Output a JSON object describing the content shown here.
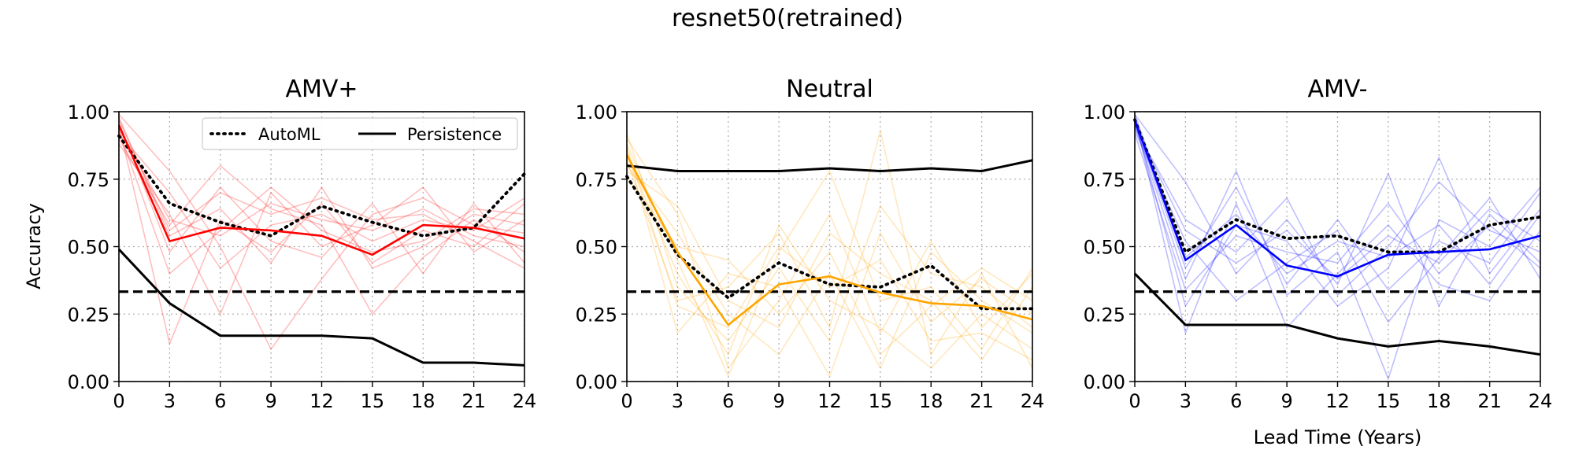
{
  "figure": {
    "title": "resnet50(retrained)"
  },
  "legend": {
    "automl_label": "AutoML",
    "persistence_label": "Persistence"
  },
  "shared_axes": {
    "ylabel": "Accuracy",
    "xlabel": "Lead Time (Years)",
    "xlim": [
      0,
      24
    ],
    "ylim": [
      0,
      1
    ],
    "xticks": [
      0,
      3,
      6,
      9,
      12,
      15,
      18,
      21,
      24
    ],
    "yticks": [
      0.0,
      0.25,
      0.5,
      0.75,
      1.0
    ],
    "ytick_labels": [
      "0.00",
      "0.25",
      "0.50",
      "0.75",
      "1.00"
    ],
    "baseline": 0.333,
    "grid": true
  },
  "chart_data": [
    {
      "type": "line",
      "title": "AMV+",
      "color": "#ff0000",
      "x": [
        0,
        3,
        6,
        9,
        12,
        15,
        18,
        21,
        24
      ],
      "series": [
        {
          "name": "AutoML",
          "style": "dotted",
          "color": "#000000",
          "values": [
            0.91,
            0.66,
            0.59,
            0.54,
            0.65,
            0.59,
            0.54,
            0.57,
            0.77
          ]
        },
        {
          "name": "Persistence",
          "style": "solid",
          "color": "#000000",
          "values": [
            0.49,
            0.29,
            0.17,
            0.17,
            0.17,
            0.16,
            0.07,
            0.07,
            0.06
          ]
        },
        {
          "style": "mean",
          "values": [
            0.95,
            0.52,
            0.57,
            0.56,
            0.54,
            0.47,
            0.58,
            0.57,
            0.53
          ]
        }
      ],
      "members": [
        [
          0.97,
          0.56,
          0.7,
          0.62,
          0.68,
          0.6,
          0.62,
          0.52,
          0.42
        ],
        [
          0.93,
          0.4,
          0.56,
          0.72,
          0.56,
          0.48,
          0.52,
          0.64,
          0.62
        ],
        [
          0.99,
          0.78,
          0.5,
          0.12,
          0.38,
          0.62,
          0.68,
          0.58,
          0.55
        ],
        [
          0.9,
          0.58,
          0.8,
          0.64,
          0.58,
          0.25,
          0.46,
          0.6,
          0.48
        ],
        [
          0.95,
          0.14,
          0.6,
          0.48,
          0.66,
          0.44,
          0.56,
          0.5,
          0.66
        ],
        [
          0.88,
          0.62,
          0.25,
          0.7,
          0.5,
          0.58,
          0.72,
          0.48,
          0.6
        ],
        [
          0.96,
          0.48,
          0.72,
          0.52,
          0.46,
          0.66,
          0.4,
          0.66,
          0.44
        ],
        [
          0.92,
          0.7,
          0.42,
          0.58,
          0.62,
          0.52,
          0.6,
          0.56,
          0.68
        ],
        [
          0.98,
          0.54,
          0.64,
          0.44,
          0.72,
          0.42,
          0.5,
          0.62,
          0.58
        ],
        [
          0.94,
          0.6,
          0.54,
          0.66,
          0.6,
          0.56,
          0.64,
          0.54,
          0.5
        ]
      ]
    },
    {
      "type": "line",
      "title": "Neutral",
      "color": "#ffa500",
      "x": [
        0,
        3,
        6,
        9,
        12,
        15,
        18,
        21,
        24
      ],
      "series": [
        {
          "name": "AutoML",
          "style": "dotted",
          "color": "#000000",
          "values": [
            0.76,
            0.47,
            0.31,
            0.44,
            0.36,
            0.35,
            0.43,
            0.27,
            0.27
          ]
        },
        {
          "name": "Persistence",
          "style": "solid",
          "color": "#000000",
          "values": [
            0.8,
            0.78,
            0.78,
            0.78,
            0.79,
            0.78,
            0.79,
            0.78,
            0.82
          ]
        },
        {
          "style": "mean",
          "values": [
            0.84,
            0.48,
            0.21,
            0.36,
            0.39,
            0.33,
            0.29,
            0.28,
            0.23
          ]
        }
      ],
      "members": [
        [
          0.9,
          0.62,
          0.05,
          0.3,
          0.62,
          0.18,
          0.52,
          0.2,
          0.4
        ],
        [
          0.82,
          0.3,
          0.35,
          0.55,
          0.2,
          0.93,
          0.1,
          0.4,
          0.05
        ],
        [
          0.88,
          0.45,
          0.02,
          0.48,
          0.78,
          0.3,
          0.35,
          0.12,
          0.42
        ],
        [
          0.8,
          0.55,
          0.25,
          0.1,
          0.4,
          0.05,
          0.48,
          0.3,
          0.18
        ],
        [
          0.86,
          0.18,
          0.4,
          0.35,
          0.02,
          0.55,
          0.22,
          0.38,
          0.25
        ],
        [
          0.84,
          0.4,
          0.1,
          0.58,
          0.3,
          0.2,
          0.05,
          0.25,
          0.12
        ],
        [
          0.78,
          0.65,
          0.3,
          0.2,
          0.55,
          0.4,
          0.3,
          0.08,
          0.35
        ],
        [
          0.92,
          0.35,
          0.15,
          0.42,
          0.15,
          0.65,
          0.4,
          0.35,
          0.2
        ],
        [
          0.76,
          0.5,
          0.45,
          0.25,
          0.48,
          0.1,
          0.28,
          0.42,
          0.3
        ],
        [
          0.87,
          0.28,
          0.2,
          0.5,
          0.35,
          0.45,
          0.15,
          0.18,
          0.08
        ]
      ]
    },
    {
      "type": "line",
      "title": "AMV-",
      "color": "#0000ff",
      "x": [
        0,
        3,
        6,
        9,
        12,
        15,
        18,
        21,
        24
      ],
      "series": [
        {
          "name": "AutoML",
          "style": "dotted",
          "color": "#000000",
          "values": [
            0.97,
            0.48,
            0.6,
            0.53,
            0.54,
            0.48,
            0.48,
            0.58,
            0.61
          ]
        },
        {
          "name": "Persistence",
          "style": "solid",
          "color": "#000000",
          "values": [
            0.4,
            0.21,
            0.21,
            0.21,
            0.16,
            0.13,
            0.15,
            0.13,
            0.1
          ]
        },
        {
          "style": "mean",
          "values": [
            0.97,
            0.45,
            0.58,
            0.43,
            0.39,
            0.47,
            0.48,
            0.49,
            0.54
          ]
        }
      ],
      "members": [
        [
          0.99,
          0.74,
          0.4,
          0.6,
          0.36,
          0.77,
          0.28,
          0.62,
          0.44
        ],
        [
          0.95,
          0.38,
          0.78,
          0.32,
          0.48,
          0.01,
          0.6,
          0.5,
          0.72
        ],
        [
          0.97,
          0.28,
          0.58,
          0.52,
          0.28,
          0.42,
          0.83,
          0.4,
          0.64
        ],
        [
          0.93,
          0.52,
          0.3,
          0.44,
          0.56,
          0.22,
          0.46,
          0.68,
          0.38
        ],
        [
          0.98,
          0.18,
          0.66,
          0.2,
          0.4,
          0.58,
          0.36,
          0.3,
          0.56
        ],
        [
          0.94,
          0.6,
          0.48,
          0.68,
          0.32,
          0.5,
          0.74,
          0.56,
          0.48
        ],
        [
          0.96,
          0.42,
          0.72,
          0.36,
          0.6,
          0.34,
          0.52,
          0.44,
          0.7
        ],
        [
          0.92,
          0.34,
          0.54,
          0.48,
          0.44,
          0.66,
          0.4,
          0.58,
          0.42
        ],
        [
          0.99,
          0.46,
          0.62,
          0.4,
          0.52,
          0.46,
          0.58,
          0.36,
          0.62
        ],
        [
          0.95,
          0.56,
          0.44,
          0.56,
          0.38,
          0.54,
          0.44,
          0.64,
          0.52
        ]
      ]
    }
  ]
}
